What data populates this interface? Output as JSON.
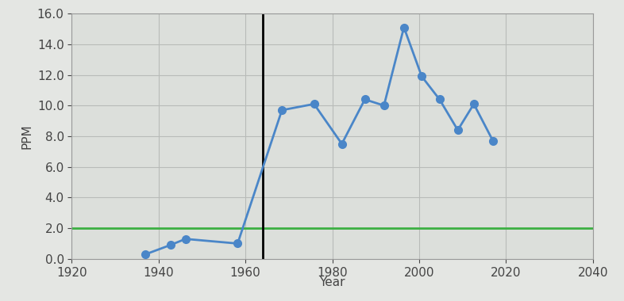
{
  "chart_data": {
    "type": "line",
    "x_label": "Year",
    "y_label": "PPM",
    "series": [
      {
        "name": "PPM",
        "color": "#4a86c8",
        "marker": "o",
        "line_style": "solid",
        "x": [
          1937,
          1942.7,
          1946.2,
          1958.2,
          1968.4,
          1975.8,
          1982.2,
          1987.5,
          1991.9,
          1996.5,
          2000.6,
          2004.7,
          2008.9,
          2012.6,
          2017
        ],
        "values": [
          0.3,
          0.9,
          1.3,
          1.0,
          9.7,
          10.1,
          7.5,
          10.4,
          10.0,
          15.1,
          11.9,
          10.4,
          8.4,
          10.1,
          7.7
        ]
      }
    ],
    "hlines": [
      {
        "y": 2.0,
        "color": "#3cb043"
      }
    ],
    "vlines": [
      {
        "x": 1964,
        "color": "#000000"
      }
    ],
    "xlim": [
      1920,
      2040
    ],
    "xticks": [
      1920,
      1940,
      1960,
      1980,
      2000,
      2020,
      2040
    ],
    "ylim": [
      0,
      16
    ],
    "yticks": [
      {
        "value": 0,
        "label": "0.0"
      },
      {
        "value": 2,
        "label": "2.0"
      },
      {
        "value": 4,
        "label": "4.0"
      },
      {
        "value": 6,
        "label": "6.0"
      },
      {
        "value": 8,
        "label": "8.0"
      },
      {
        "value": 10,
        "label": "10.0"
      },
      {
        "value": 12,
        "label": "12.0"
      },
      {
        "value": 14,
        "label": "14.0"
      },
      {
        "value": 16,
        "label": "16.0"
      }
    ],
    "grid": true
  }
}
